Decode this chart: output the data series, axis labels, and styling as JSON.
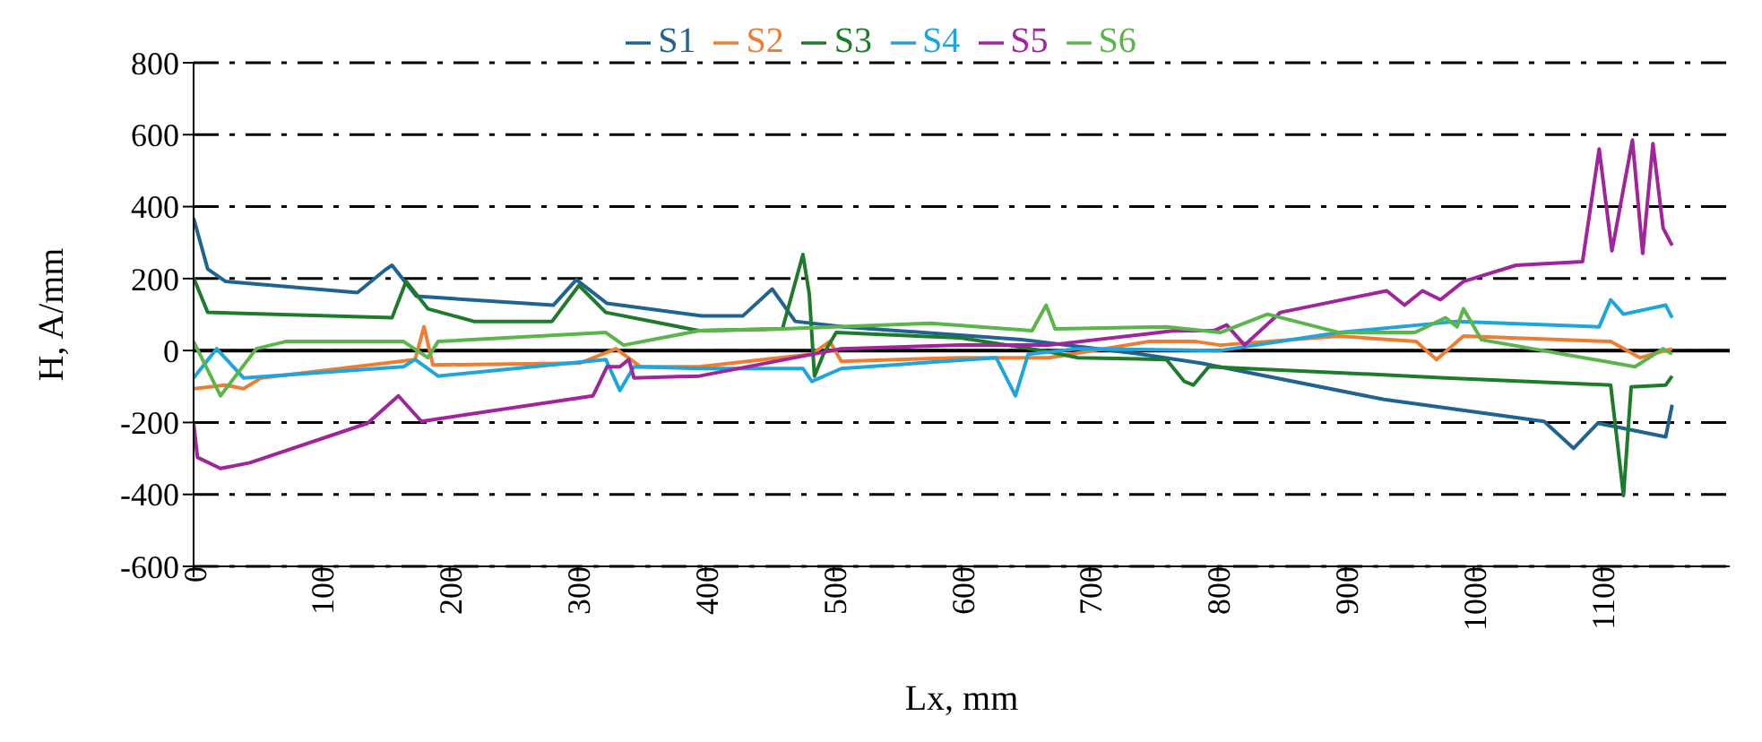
{
  "chart_data": {
    "type": "line",
    "xlabel": "Lx, mm",
    "ylabel": "H, A/mm",
    "xlim": [
      0,
      1200
    ],
    "xticks": [
      0,
      100,
      200,
      300,
      400,
      500,
      600,
      700,
      800,
      900,
      1000,
      1100
    ],
    "ylim": [
      -600,
      800
    ],
    "yticks": [
      -600,
      -400,
      -200,
      0,
      200,
      400,
      600,
      800
    ],
    "grid": "y",
    "legend": "top",
    "marker": "none",
    "line_style": "solid",
    "ref_lines": [
      {
        "axis": "y",
        "value": 0,
        "color": "#000000",
        "line_style": "solid"
      }
    ],
    "series": [
      {
        "name": "S1",
        "color": "#1f6391",
        "x": [
          0,
          11,
          25,
          128,
          150,
          155,
          174,
          281,
          299,
          323,
          397,
          429,
          452,
          470,
          508,
          647,
          740,
          787,
          930,
          1055,
          1078,
          1097,
          1150,
          1155
        ],
        "values": [
          368,
          227,
          192,
          161,
          225,
          237,
          151,
          126,
          197,
          131,
          96,
          96,
          171,
          81,
          66,
          30,
          -10,
          -35,
          -136,
          -197,
          -272,
          -202,
          -240,
          -151
        ]
      },
      {
        "name": "S2",
        "color": "#ed7d31",
        "x": [
          0,
          25,
          39,
          53,
          173,
          180,
          187,
          302,
          330,
          349,
          395,
          483,
          497,
          506,
          599,
          668,
          746,
          783,
          802,
          895,
          955,
          971,
          992,
          1107,
          1130,
          1155
        ],
        "values": [
          -106,
          -96,
          -106,
          -76,
          -25,
          66,
          -40,
          -35,
          5,
          -45,
          -45,
          -10,
          25,
          -30,
          -20,
          -20,
          25,
          25,
          15,
          40,
          25,
          -25,
          40,
          25,
          -20,
          5
        ]
      },
      {
        "name": "S3",
        "color": "#1e7b2c",
        "x": [
          0,
          11,
          155,
          166,
          183,
          219,
          280,
          301,
          322,
          395,
          460,
          476,
          481,
          485,
          492,
          502,
          599,
          663,
          691,
          760,
          774,
          781,
          793,
          950,
          978,
          1107,
          1117,
          1123,
          1150,
          1155
        ],
        "values": [
          202,
          106,
          91,
          192,
          116,
          81,
          81,
          181,
          106,
          55,
          60,
          267,
          156,
          -71,
          -10,
          50,
          35,
          0,
          -20,
          -25,
          -86,
          -96,
          -45,
          -71,
          -76,
          -96,
          -403,
          -101,
          -96,
          -71
        ]
      },
      {
        "name": "S4",
        "color": "#1ea5dc",
        "x": [
          0,
          18,
          39,
          164,
          173,
          191,
          322,
          333,
          344,
          395,
          476,
          483,
          506,
          627,
          642,
          652,
          691,
          802,
          895,
          987,
          1098,
          1107,
          1117,
          1150,
          1155
        ],
        "values": [
          -76,
          5,
          -76,
          -45,
          -25,
          -71,
          -25,
          -111,
          -45,
          -50,
          -50,
          -86,
          -50,
          -20,
          -126,
          -10,
          5,
          0,
          50,
          81,
          66,
          141,
          101,
          126,
          91
        ]
      },
      {
        "name": "S5",
        "color": "#a0249c",
        "x": [
          0,
          3,
          21,
          44,
          136,
          160,
          178,
          312,
          323,
          333,
          340,
          344,
          395,
          506,
          599,
          668,
          766,
          797,
          807,
          821,
          849,
          932,
          946,
          960,
          974,
          992,
          1033,
          1085,
          1098,
          1108,
          1124,
          1132,
          1140,
          1148,
          1155
        ],
        "values": [
          -202,
          -297,
          -328,
          -312,
          -202,
          -126,
          -197,
          -126,
          -45,
          -45,
          -25,
          -76,
          -71,
          5,
          15,
          15,
          55,
          55,
          71,
          15,
          106,
          166,
          126,
          166,
          141,
          192,
          237,
          247,
          560,
          277,
          585,
          270,
          575,
          340,
          292
        ]
      },
      {
        "name": "S6",
        "color": "#5cb54b",
        "x": [
          0,
          21,
          49,
          72,
          164,
          183,
          191,
          322,
          336,
          395,
          460,
          576,
          655,
          666,
          673,
          760,
          802,
          839,
          895,
          954,
          978,
          987,
          992,
          1006,
          1126,
          1148,
          1155
        ],
        "values": [
          25,
          -126,
          5,
          25,
          25,
          -20,
          25,
          50,
          15,
          55,
          60,
          76,
          55,
          126,
          60,
          66,
          50,
          101,
          50,
          50,
          91,
          66,
          116,
          30,
          -45,
          5,
          -10
        ]
      }
    ]
  }
}
